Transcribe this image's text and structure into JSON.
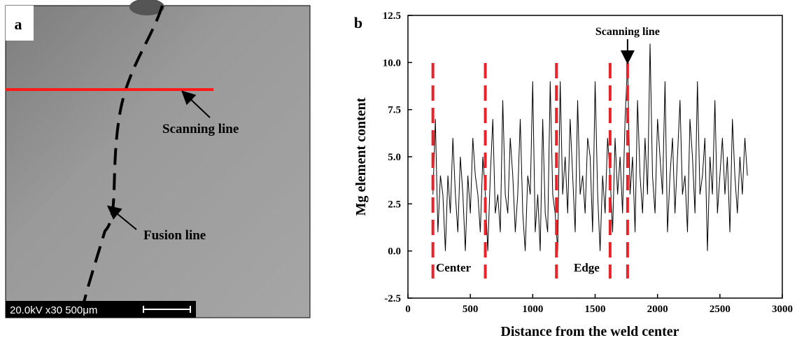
{
  "panel_a": {
    "label": "a",
    "scanning_line": "Scanning line",
    "fusion_line": "Fusion line",
    "scale_bar": "20.0kV x30 500μm"
  },
  "chart_data": {
    "type": "line",
    "panel_label": "b",
    "xlabel": "Distance from the weld center",
    "ylabel": "Mg element content",
    "color": "#000000",
    "x": [
      200,
      220,
      240,
      260,
      280,
      300,
      320,
      340,
      360,
      380,
      400,
      420,
      440,
      460,
      480,
      500,
      520,
      540,
      560,
      580,
      600,
      620,
      640,
      660,
      680,
      700,
      720,
      740,
      760,
      780,
      800,
      820,
      840,
      860,
      880,
      900,
      920,
      940,
      960,
      980,
      1000,
      1020,
      1040,
      1060,
      1080,
      1100,
      1120,
      1140,
      1160,
      1180,
      1200,
      1220,
      1240,
      1260,
      1280,
      1300,
      1320,
      1340,
      1360,
      1380,
      1400,
      1420,
      1440,
      1460,
      1480,
      1500,
      1520,
      1540,
      1560,
      1580,
      1600,
      1620,
      1640,
      1660,
      1680,
      1700,
      1720,
      1740,
      1760,
      1780,
      1800,
      1820,
      1840,
      1860,
      1880,
      1900,
      1920,
      1940,
      1960,
      1980,
      2000,
      2020,
      2040,
      2060,
      2080,
      2100,
      2120,
      2140,
      2160,
      2180,
      2200,
      2220,
      2240,
      2260,
      2280,
      2300,
      2320,
      2340,
      2360,
      2380,
      2400,
      2420,
      2440,
      2460,
      2480,
      2500,
      2520,
      2540,
      2560,
      2580,
      2600,
      2620,
      2640,
      2660,
      2680,
      2700,
      2720
    ],
    "values": [
      3,
      7,
      1,
      4,
      3,
      0,
      4,
      2,
      6,
      3,
      1,
      5,
      3,
      0,
      4,
      2,
      6,
      4,
      3,
      1,
      5,
      3,
      0,
      4,
      7,
      2,
      3,
      1,
      8,
      3,
      2,
      6,
      4,
      1,
      3,
      7,
      2,
      0,
      4,
      3,
      9,
      1,
      3,
      0,
      7,
      2,
      1,
      9,
      3,
      2,
      0,
      9,
      3,
      5,
      2,
      7,
      4,
      1,
      8,
      3,
      4,
      2,
      6,
      5,
      1,
      9,
      3,
      0,
      4,
      2,
      6,
      4,
      1,
      6,
      3,
      5,
      2,
      7,
      10,
      3,
      5,
      1,
      8,
      4,
      2,
      6,
      3,
      11,
      4,
      2,
      7,
      5,
      3,
      9,
      1,
      4,
      6,
      2,
      5,
      8,
      3,
      4,
      1,
      7,
      5,
      2,
      9,
      3,
      4,
      6,
      0,
      5,
      3,
      8,
      2,
      4,
      6,
      3,
      5,
      1,
      7,
      4,
      2,
      5,
      3,
      6,
      4
    ],
    "xlim": [
      0,
      3000
    ],
    "xticks": [
      0,
      500,
      1000,
      1500,
      2000,
      2500,
      3000
    ],
    "ylim": [
      -2.5,
      12.5
    ],
    "yticks": [
      -2.5,
      {
        "value": 0,
        "label": "0.0"
      },
      2.5,
      {
        "value": 5,
        "label": "5.0"
      },
      7.5,
      {
        "value": 10,
        "label": "10.0"
      },
      12.5
    ],
    "boundaries": {
      "x": [
        200,
        620,
        1190,
        1620,
        1760
      ],
      "color": "#e8232a"
    },
    "annotations": {
      "center": "Center",
      "edge": "Edge",
      "scanning_line": "Scanning line"
    }
  }
}
